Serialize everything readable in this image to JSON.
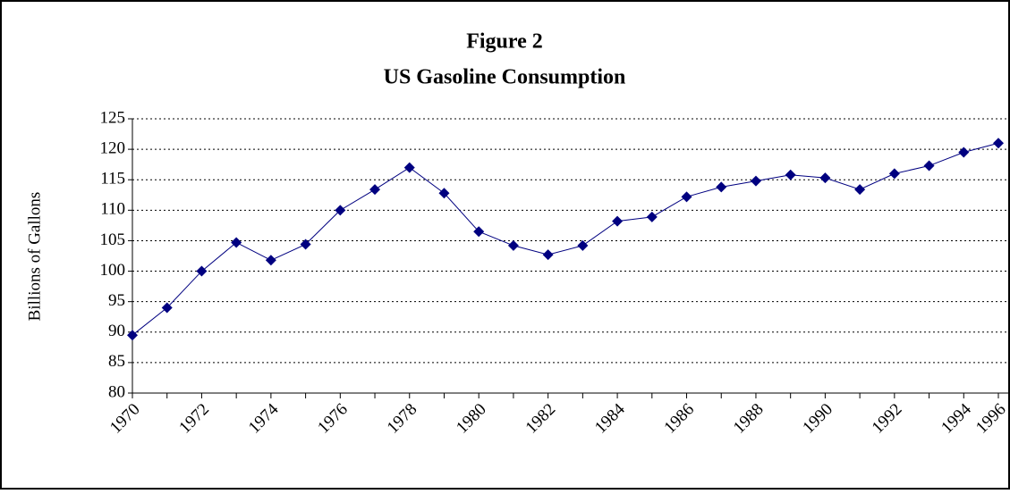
{
  "chart_data": {
    "type": "line",
    "title": [
      "Figure 2",
      "US Gasoline Consumption"
    ],
    "y_label": "Billions of Gallons",
    "categories": [
      "1970",
      null,
      "1972",
      null,
      "1974",
      null,
      "1976",
      null,
      "1978",
      null,
      "1980",
      null,
      "1982",
      null,
      "1984",
      null,
      "1986",
      null,
      "1988",
      null,
      "1990",
      null,
      "1992",
      null,
      "1994",
      "1996"
    ],
    "series": [
      {
        "name": "US Gasoline Consumption",
        "color": "#000080",
        "values": [
          89.5,
          94,
          100,
          104.7,
          101.8,
          104.4,
          110,
          113.4,
          117,
          112.8,
          106.5,
          104.2,
          102.7,
          104.2,
          108.2,
          108.9,
          112.2,
          113.8,
          114.8,
          115.8,
          115.3,
          113.4,
          116,
          117.3,
          119.5,
          121
        ]
      }
    ],
    "ylim": [
      80,
      125
    ],
    "yticks": [
      80,
      85,
      90,
      95,
      100,
      105,
      110,
      115,
      120,
      125
    ],
    "grid": true
  }
}
